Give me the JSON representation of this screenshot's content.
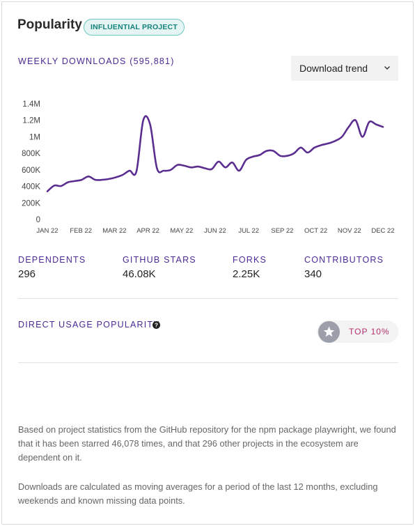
{
  "header": {
    "title": "Popularity",
    "badge": "INFLUENTIAL PROJECT"
  },
  "downloads": {
    "label": "WEEKLY DOWNLOADS (595,881)",
    "dropdown_label": "Download trend"
  },
  "chart_data": {
    "type": "line",
    "ylim": [
      0,
      1400000
    ],
    "y_ticks": [
      "0",
      "200K",
      "400K",
      "600K",
      "800K",
      "1M",
      "1.2M",
      "1.4M"
    ],
    "x_ticks": [
      "JAN 22",
      "FEB 22",
      "MAR 22",
      "APR 22",
      "MAY 22",
      "JUN 22",
      "JUL 22",
      "SEP 22",
      "OCT 22",
      "NOV 22",
      "DEC 22"
    ],
    "line_color": "#5b2d90",
    "series": [
      {
        "x": [
          "2022-01-03",
          "2022-01-10",
          "2022-01-17",
          "2022-01-24",
          "2022-01-31",
          "2022-02-07",
          "2022-02-14",
          "2022-02-21",
          "2022-02-28",
          "2022-03-07",
          "2022-03-14",
          "2022-03-21",
          "2022-03-28",
          "2022-04-04",
          "2022-04-11",
          "2022-04-18",
          "2022-04-25",
          "2022-05-02",
          "2022-05-09",
          "2022-05-16",
          "2022-05-23",
          "2022-05-30",
          "2022-06-06",
          "2022-06-13",
          "2022-06-20",
          "2022-06-27",
          "2022-07-04",
          "2022-07-11",
          "2022-07-18",
          "2022-07-25",
          "2022-08-01",
          "2022-08-08",
          "2022-08-15",
          "2022-08-22",
          "2022-08-29",
          "2022-09-05",
          "2022-09-12",
          "2022-09-19",
          "2022-09-26",
          "2022-10-03",
          "2022-10-10",
          "2022-10-17",
          "2022-10-24",
          "2022-10-31",
          "2022-11-07",
          "2022-11-14",
          "2022-11-21",
          "2022-11-28",
          "2022-12-05",
          "2022-12-12"
        ],
        "values": [
          340000,
          410000,
          405000,
          450000,
          465000,
          480000,
          520000,
          480000,
          480000,
          490000,
          510000,
          540000,
          590000,
          580000,
          1200000,
          1150000,
          620000,
          590000,
          600000,
          660000,
          650000,
          630000,
          640000,
          620000,
          610000,
          700000,
          630000,
          690000,
          590000,
          720000,
          760000,
          780000,
          830000,
          830000,
          770000,
          770000,
          800000,
          870000,
          810000,
          870000,
          900000,
          920000,
          950000,
          1000000,
          1120000,
          1200000,
          1000000,
          1180000,
          1150000,
          1120000
        ]
      }
    ]
  },
  "stats": [
    {
      "label": "DEPENDENTS",
      "value": "296"
    },
    {
      "label": "GITHUB STARS",
      "value": "46.08K"
    },
    {
      "label": "FORKS",
      "value": "2.25K"
    },
    {
      "label": "CONTRIBUTORS",
      "value": "340"
    }
  ],
  "usage": {
    "label": "DIRECT USAGE POPULARITY",
    "rank": "TOP 10%"
  },
  "description": {
    "p1": "Based on project statistics from the GitHub repository for the npm package playwright, we found that it has been starred 46,078 times, and that 296 other projects in the ecosystem are dependent on it.",
    "p2": "Downloads are calculated as moving averages for a period of the last 12 months, excluding weekends and known missing data points."
  },
  "icons": {
    "dropdown": "chevron-down-icon",
    "help": "question-circle-icon",
    "rank": "star-icon"
  }
}
